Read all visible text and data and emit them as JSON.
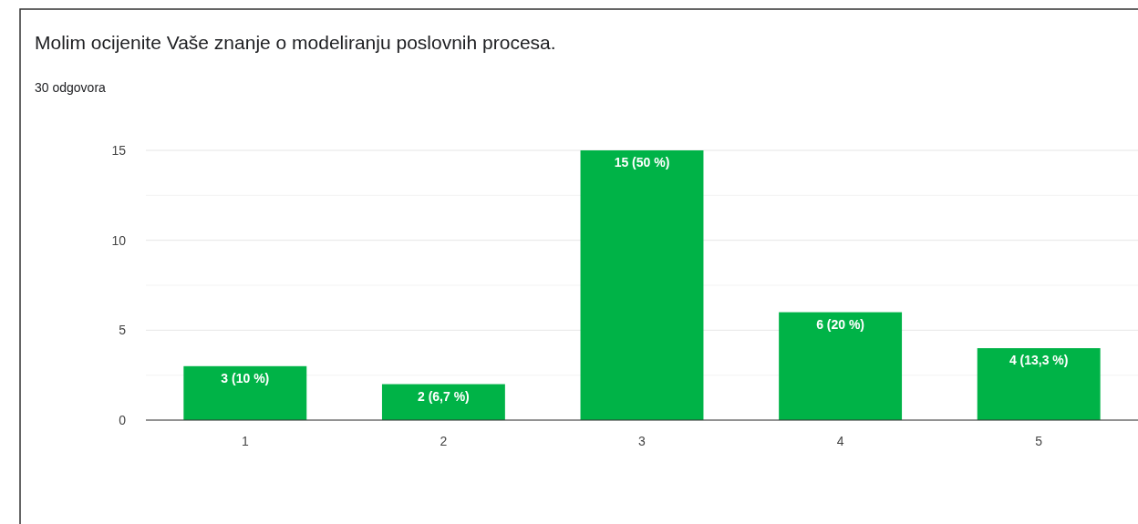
{
  "chart_data": {
    "type": "bar",
    "title": "Molim ocijenite Vaše znanje o modeliranju poslovnih procesa.",
    "subtitle": "30 odgovora",
    "categories": [
      "1",
      "2",
      "3",
      "4",
      "5"
    ],
    "values": [
      3,
      2,
      15,
      6,
      4
    ],
    "value_labels": [
      "3 (10 %)",
      "2 (6,7 %)",
      "15 (50 %)",
      "6 (20 %)",
      "4 (13,3 %)"
    ],
    "color": "#00b347",
    "ylim": [
      0,
      15
    ],
    "yticks": [
      0,
      {
        "value": 2.5,
        "label": null
      },
      5,
      {
        "value": 7.5,
        "label": null
      },
      10,
      {
        "value": 12.5,
        "label": null
      },
      15
    ],
    "grid": true
  }
}
